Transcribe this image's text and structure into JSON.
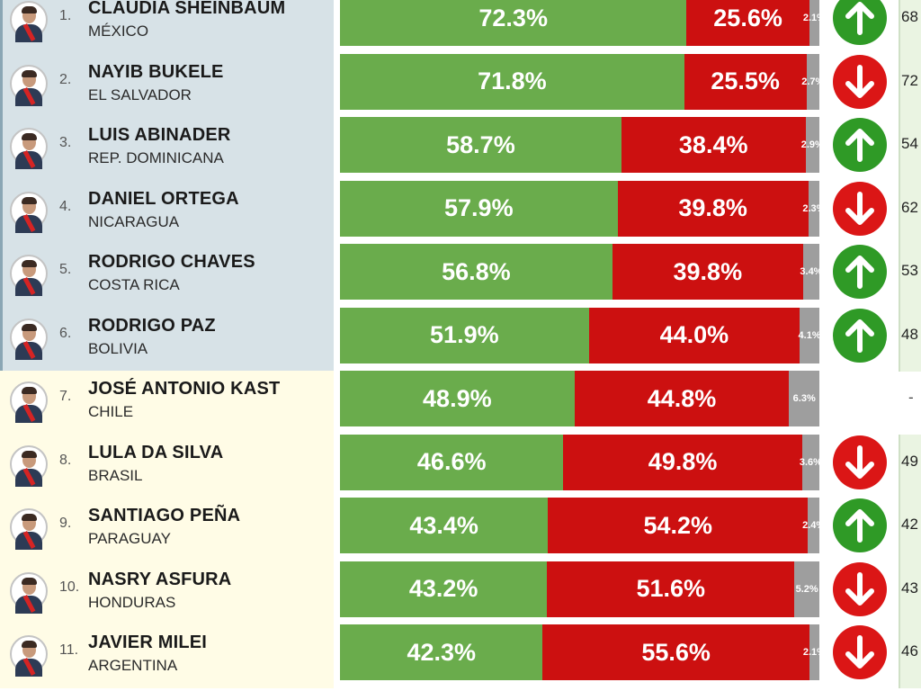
{
  "chart_data": {
    "type": "bar",
    "stacked": true,
    "rows": [
      {
        "rank": "1.",
        "name": "CLAUDIA SHEINBAUM",
        "country": "MÉXICO",
        "approve": 72.3,
        "approve_label": "72.3%",
        "disapprove": 25.6,
        "disapprove_label": "25.6%",
        "other": 2.1,
        "other_label": "2.1%",
        "trend": "up",
        "prev": "68"
      },
      {
        "rank": "2.",
        "name": "NAYIB BUKELE",
        "country": "EL SALVADOR",
        "approve": 71.8,
        "approve_label": "71.8%",
        "disapprove": 25.5,
        "disapprove_label": "25.5%",
        "other": 2.7,
        "other_label": "2.7%",
        "trend": "down",
        "prev": "72"
      },
      {
        "rank": "3.",
        "name": "LUIS ABINADER",
        "country": "REP. DOMINICANA",
        "approve": 58.7,
        "approve_label": "58.7%",
        "disapprove": 38.4,
        "disapprove_label": "38.4%",
        "other": 2.9,
        "other_label": "2.9%",
        "trend": "up",
        "prev": "54"
      },
      {
        "rank": "4.",
        "name": "DANIEL ORTEGA",
        "country": "NICARAGUA",
        "approve": 57.9,
        "approve_label": "57.9%",
        "disapprove": 39.8,
        "disapprove_label": "39.8%",
        "other": 2.3,
        "other_label": "2.3%",
        "trend": "down",
        "prev": "62"
      },
      {
        "rank": "5.",
        "name": "RODRIGO CHAVES",
        "country": "COSTA RICA",
        "approve": 56.8,
        "approve_label": "56.8%",
        "disapprove": 39.8,
        "disapprove_label": "39.8%",
        "other": 3.4,
        "other_label": "3.4%",
        "trend": "up",
        "prev": "53"
      },
      {
        "rank": "6.",
        "name": "RODRIGO PAZ",
        "country": "BOLIVIA",
        "approve": 51.9,
        "approve_label": "51.9%",
        "disapprove": 44.0,
        "disapprove_label": "44.0%",
        "other": 4.1,
        "other_label": "4.1%",
        "trend": "up",
        "prev": "48"
      },
      {
        "rank": "7.",
        "name": "JOSÉ ANTONIO KAST",
        "country": "CHILE",
        "approve": 48.9,
        "approve_label": "48.9%",
        "disapprove": 44.8,
        "disapprove_label": "44.8%",
        "other": 6.3,
        "other_label": "6.3%",
        "trend": "none",
        "prev": "-"
      },
      {
        "rank": "8.",
        "name": "LULA DA SILVA",
        "country": "BRASIL",
        "approve": 46.6,
        "approve_label": "46.6%",
        "disapprove": 49.8,
        "disapprove_label": "49.8%",
        "other": 3.6,
        "other_label": "3.6%",
        "trend": "down",
        "prev": "49"
      },
      {
        "rank": "9.",
        "name": "SANTIAGO PEÑA",
        "country": "PARAGUAY",
        "approve": 43.4,
        "approve_label": "43.4%",
        "disapprove": 54.2,
        "disapprove_label": "54.2%",
        "other": 2.4,
        "other_label": "2.4%",
        "trend": "up",
        "prev": "42"
      },
      {
        "rank": "10.",
        "name": "NASRY ASFURA",
        "country": "HONDURAS",
        "approve": 43.2,
        "approve_label": "43.2%",
        "disapprove": 51.6,
        "disapprove_label": "51.6%",
        "other": 5.2,
        "other_label": "5.2%",
        "trend": "down",
        "prev": "43"
      },
      {
        "rank": "11.",
        "name": "JAVIER MILEI",
        "country": "ARGENTINA",
        "approve": 42.3,
        "approve_label": "42.3%",
        "disapprove": 55.6,
        "disapprove_label": "55.6%",
        "other": 2.1,
        "other_label": "2.1%",
        "trend": "down",
        "prev": "46"
      }
    ]
  },
  "colors": {
    "approve": "#6aac4c",
    "disapprove": "#cc1010",
    "other": "#9e9e9e",
    "trend_up": "#2f9a26",
    "trend_down": "#db1616",
    "tier_top_background": "#d7e2e7",
    "tier_bottom_background": "#fffce6"
  }
}
